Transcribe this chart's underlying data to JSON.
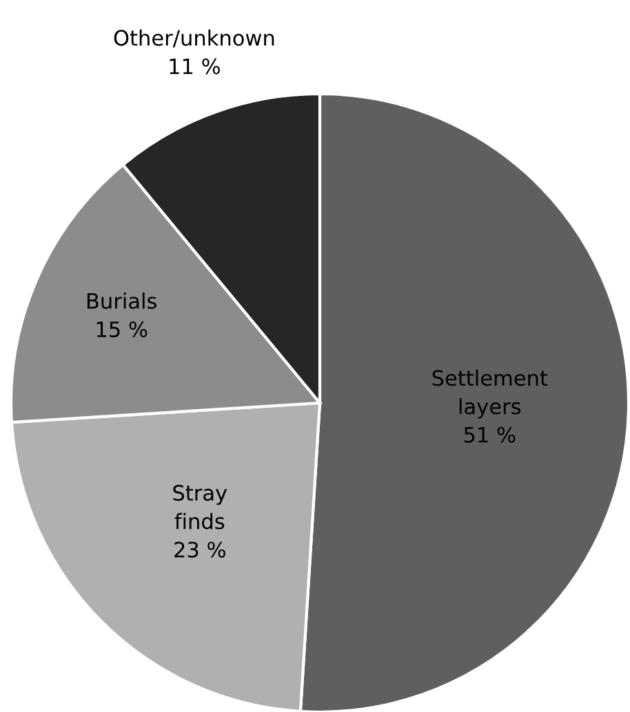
{
  "chart_data": {
    "type": "pie",
    "categories": [
      "Settlement\nlayers",
      "Stray\nfinds",
      "Burials",
      "Other/unknown"
    ],
    "values": [
      51,
      23,
      15,
      11
    ],
    "value_labels": [
      "51 %",
      "23 %",
      "15 %",
      "11 %"
    ],
    "colors": [
      "#5f5f5f",
      "#b0b0b0",
      "#8c8c8c",
      "#262626"
    ]
  }
}
